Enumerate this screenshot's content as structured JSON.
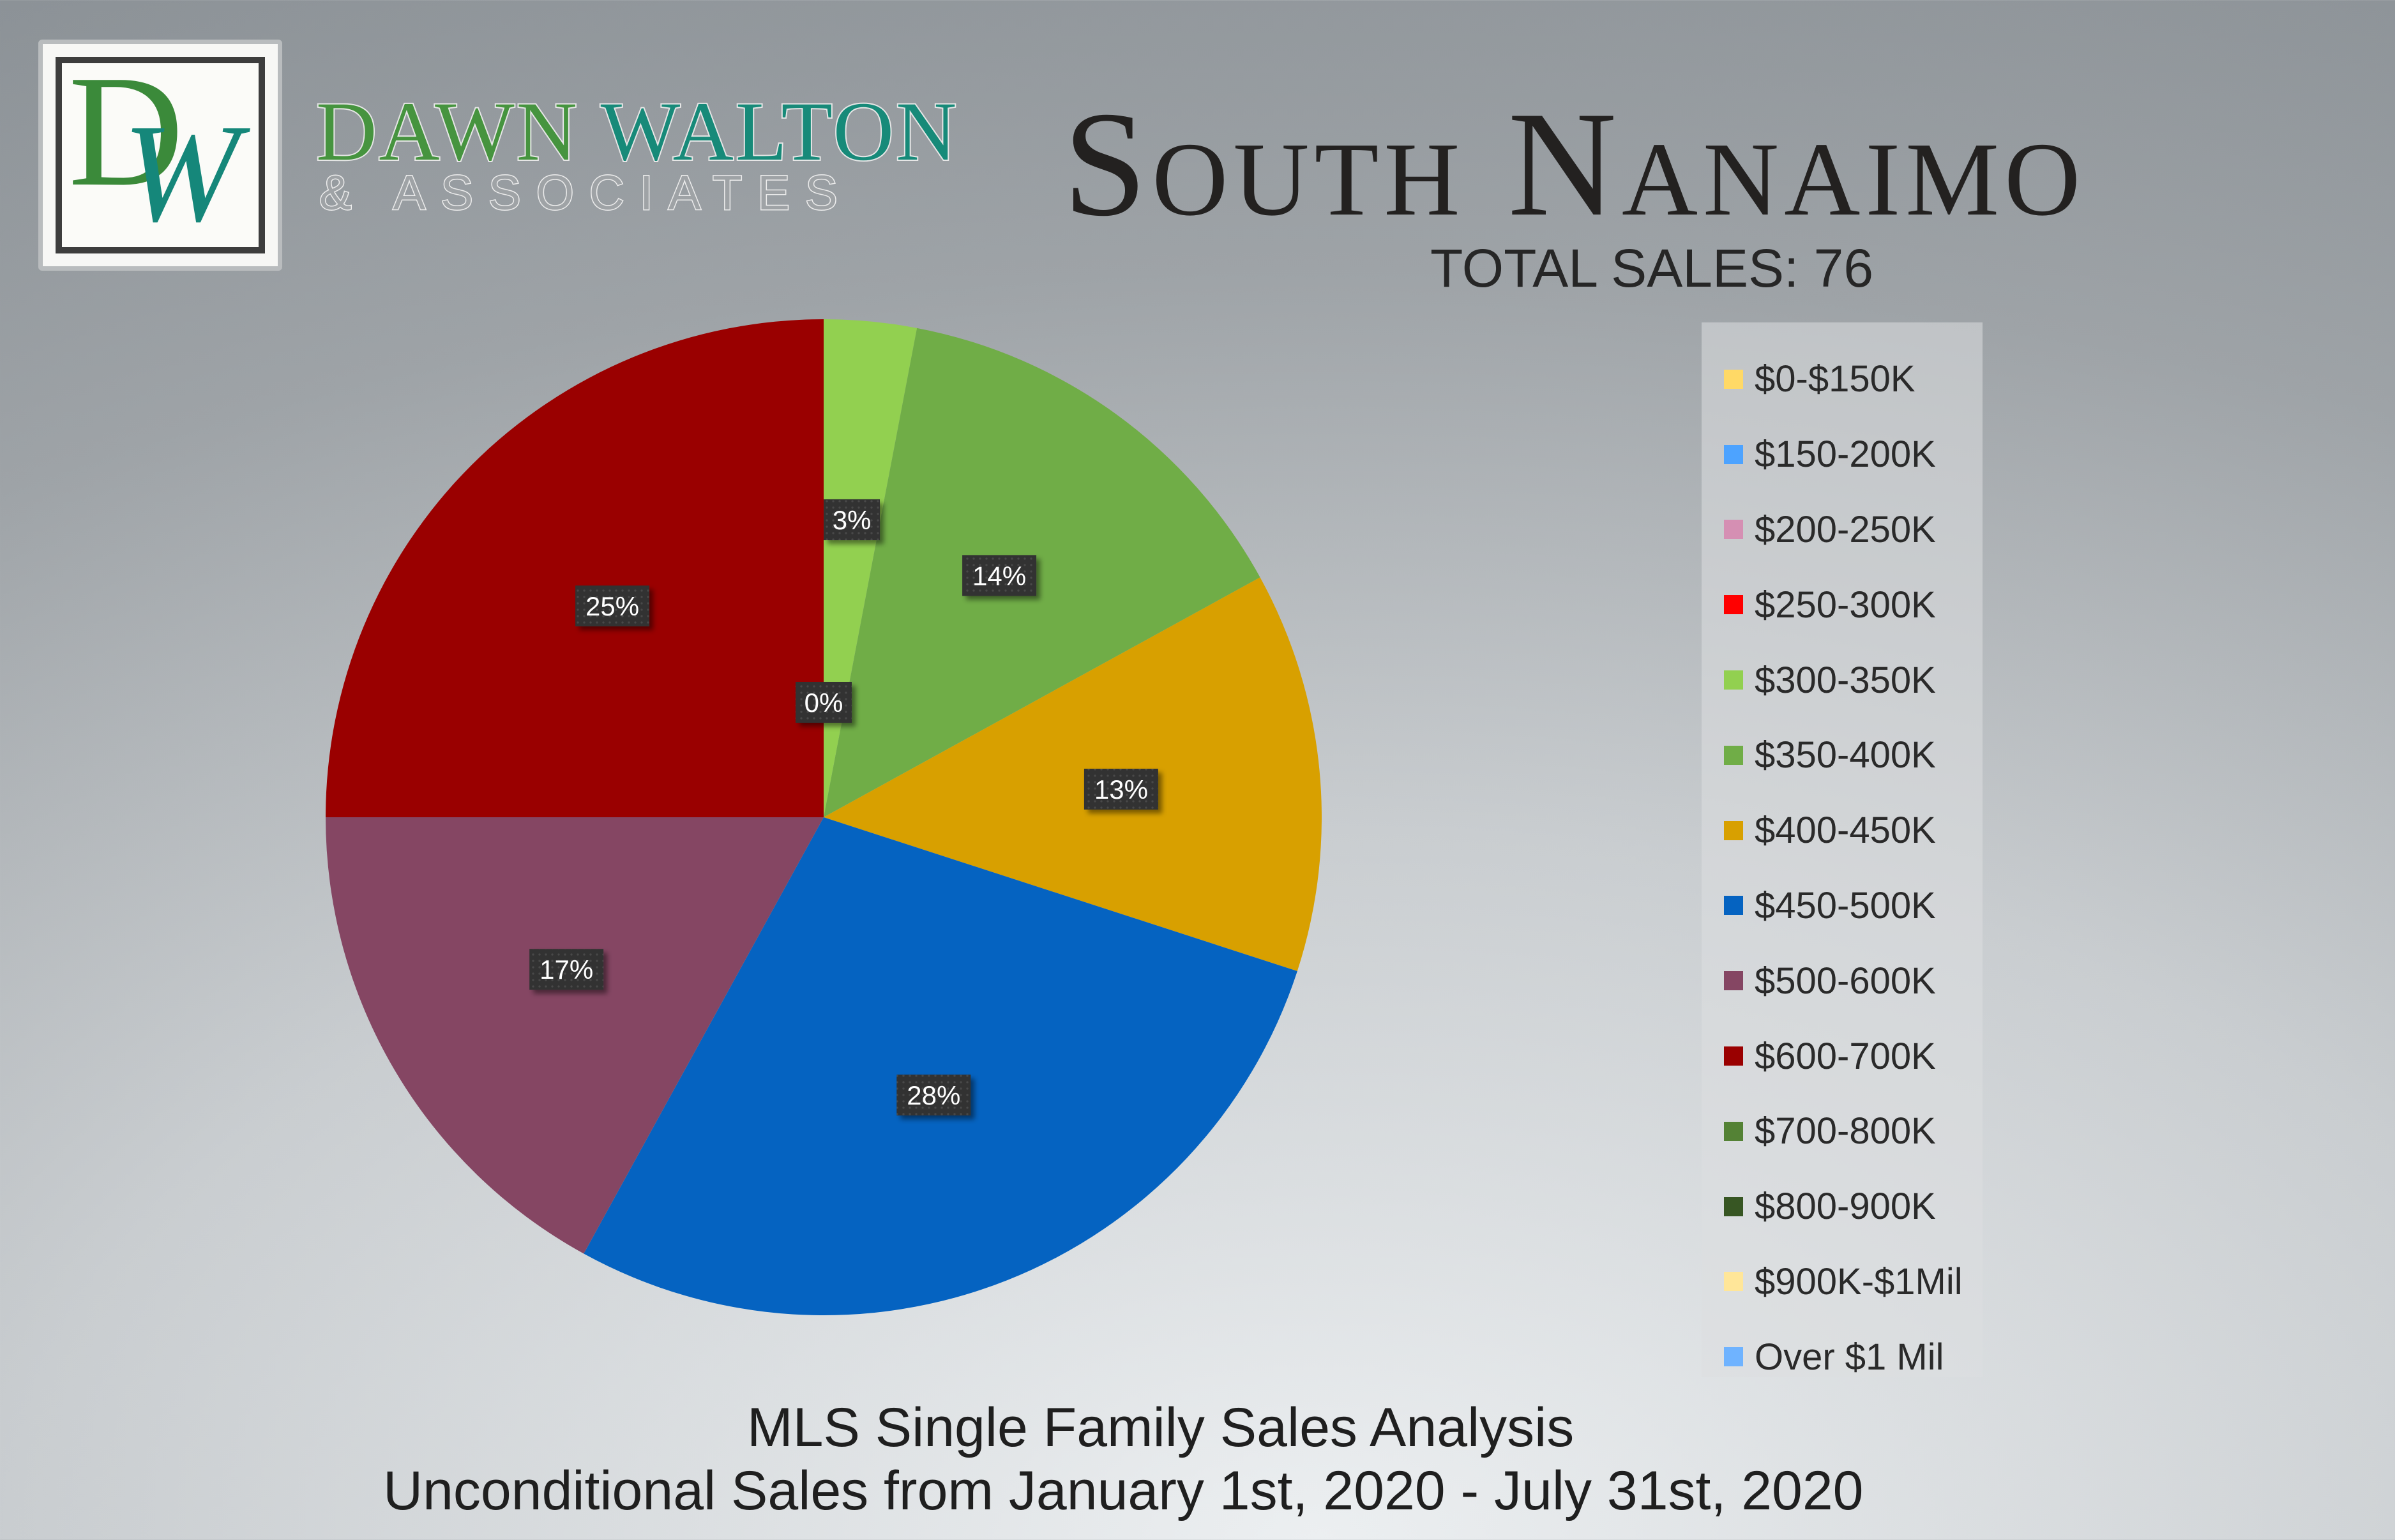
{
  "logo": {
    "letter_d": "D",
    "letter_w": "W",
    "name_part1": "DAWN",
    "name_part2": "WALTON",
    "tagline": "& ASSOCIATES"
  },
  "title": "South Nanaimo",
  "total_sales": "TOTAL SALES: 76",
  "footer": {
    "line1": "MLS Single Family Sales Analysis",
    "line2": "Unconditional Sales from January 1st, 2020 - July 31st, 2020"
  },
  "chart_data": {
    "type": "pie",
    "start_angle_deg": 0,
    "slices": [
      {
        "label": "$0-$150K",
        "value": 0,
        "color": "#ffd966",
        "data_label": ""
      },
      {
        "label": "$150-200K",
        "value": 0,
        "color": "#4da3ff",
        "data_label": ""
      },
      {
        "label": "$200-250K",
        "value": 0,
        "color": "#d58fb3",
        "data_label": ""
      },
      {
        "label": "$250-300K",
        "value": 0,
        "color": "#ff0000",
        "data_label": "0%"
      },
      {
        "label": "$300-350K",
        "value": 3,
        "color": "#92d050",
        "data_label": "3%"
      },
      {
        "label": "$350-400K",
        "value": 14,
        "color": "#70ad47",
        "data_label": "14%"
      },
      {
        "label": "$400-450K",
        "value": 13,
        "color": "#d8a000",
        "data_label": "13%"
      },
      {
        "label": "$450-500K",
        "value": 28,
        "color": "#0563c1",
        "data_label": "28%"
      },
      {
        "label": "$500-600K",
        "value": 17,
        "color": "#854663",
        "data_label": "17%"
      },
      {
        "label": "$600-700K",
        "value": 25,
        "color": "#9a0000",
        "data_label": "25%"
      },
      {
        "label": "$700-800K",
        "value": 0,
        "color": "#548235",
        "data_label": ""
      },
      {
        "label": "$800-900K",
        "value": 0,
        "color": "#375623",
        "data_label": ""
      },
      {
        "label": "$900K-$1Mil",
        "value": 0,
        "color": "#ffe699",
        "data_label": ""
      },
      {
        "label": "Over $1 Mil",
        "value": 0,
        "color": "#6fb3ff",
        "data_label": ""
      }
    ],
    "legend_position": "right"
  }
}
